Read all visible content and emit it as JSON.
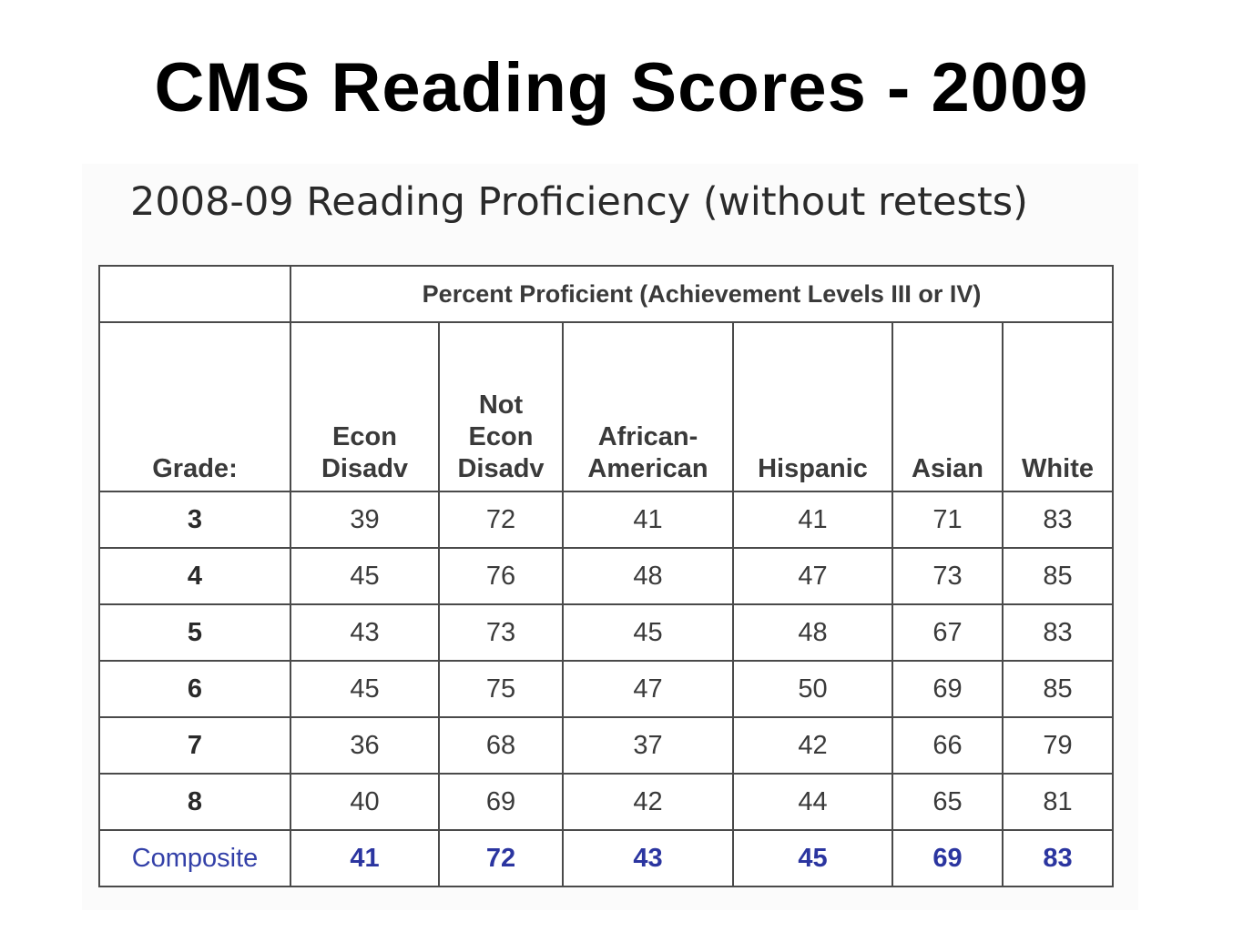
{
  "slide": {
    "title": "CMS Reading Scores - 2009"
  },
  "table": {
    "title": "2008-09 Reading Proficiency (without retests)",
    "group_header": "Percent Proficient (Achievement Levels III or IV)",
    "grade_header": "Grade:",
    "columns": [
      [
        "Econ",
        "Disadv"
      ],
      [
        "Not",
        "Econ",
        "Disadv"
      ],
      [
        "African-",
        "American"
      ],
      [
        "Hispanic"
      ],
      [
        "Asian"
      ],
      [
        "White"
      ]
    ],
    "rows": [
      {
        "grade": "3",
        "values": [
          "39",
          "72",
          "41",
          "41",
          "71",
          "83"
        ]
      },
      {
        "grade": "4",
        "values": [
          "45",
          "76",
          "48",
          "47",
          "73",
          "85"
        ]
      },
      {
        "grade": "5",
        "values": [
          "43",
          "73",
          "45",
          "48",
          "67",
          "83"
        ]
      },
      {
        "grade": "6",
        "values": [
          "45",
          "75",
          "47",
          "50",
          "69",
          "85"
        ]
      },
      {
        "grade": "7",
        "values": [
          "36",
          "68",
          "37",
          "42",
          "66",
          "79"
        ]
      },
      {
        "grade": "8",
        "values": [
          "40",
          "69",
          "42",
          "44",
          "65",
          "81"
        ]
      }
    ],
    "composite": {
      "grade": "Composite",
      "values": [
        "41",
        "72",
        "43",
        "45",
        "69",
        "83"
      ]
    }
  },
  "colors": {
    "composite_text": "#2b35a0",
    "border": "#4a4a4a"
  }
}
